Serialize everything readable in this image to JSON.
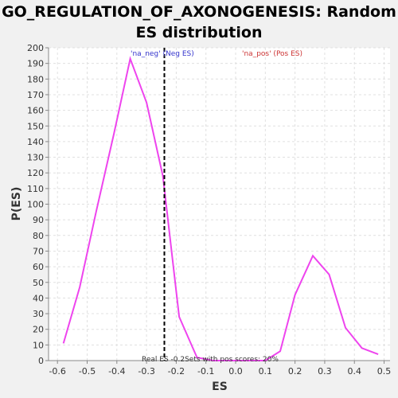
{
  "chart_data": {
    "type": "line",
    "title_line1": "GO_REGULATION_OF_AXONOGENESIS: Random",
    "title_line2": "ES distribution",
    "xlabel": "ES",
    "ylabel": "P(ES)",
    "xlim": [
      -0.63,
      0.52
    ],
    "ylim": [
      0,
      200
    ],
    "xticks": [
      -0.6,
      -0.5,
      -0.4,
      -0.3,
      -0.2,
      -0.1,
      0.0,
      0.1,
      0.2,
      0.3,
      0.4,
      0.5
    ],
    "yticks": [
      0,
      10,
      20,
      30,
      40,
      50,
      60,
      70,
      80,
      90,
      100,
      110,
      120,
      130,
      140,
      150,
      160,
      170,
      180,
      190,
      200
    ],
    "grid": true,
    "series": [
      {
        "color": "#ee44ee",
        "x": [
          -0.58,
          -0.525,
          -0.47,
          -0.41,
          -0.355,
          -0.3,
          -0.245,
          -0.19,
          -0.13,
          -0.075,
          0.0,
          0.045,
          0.1,
          0.15,
          0.2,
          0.26,
          0.315,
          0.37,
          0.425,
          0.48
        ],
        "y": [
          11,
          47,
          95,
          145,
          193,
          165,
          118,
          28,
          2,
          0,
          0,
          0,
          0,
          6,
          42,
          67,
          55,
          21,
          8,
          4
        ]
      }
    ],
    "real_es_line": {
      "x": -0.24,
      "color": "#000000",
      "style": "dashed"
    },
    "legend": [
      {
        "label": "'na_neg' (Neg ES)",
        "color": "#3333cc"
      },
      {
        "label": "'na_pos' (Pos ES)",
        "color": "#cc3333"
      }
    ],
    "annotation": "Real ES -0.2Sets with pos scores: 20%"
  }
}
